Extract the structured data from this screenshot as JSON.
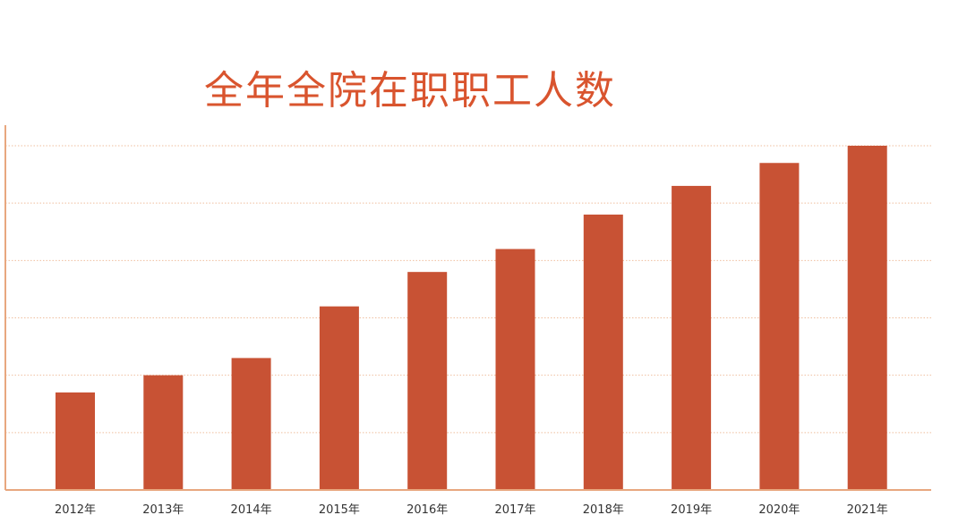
{
  "colors": {
    "bar": "#c85234",
    "title": "#d9542e",
    "axis": "#e8a77f",
    "grid": "#efbf9f"
  },
  "chart_data": {
    "type": "bar",
    "title": "全年全院在职职工人数",
    "xlabel": "",
    "ylabel": "",
    "categories": [
      "2012年",
      "2013年",
      "2014年",
      "2015年",
      "2016年",
      "2017年",
      "2018年",
      "2019年",
      "2020年",
      "2021年"
    ],
    "values": [
      1.7,
      2.0,
      2.3,
      3.2,
      3.8,
      4.2,
      4.8,
      5.3,
      5.7,
      6.0
    ],
    "ylim": [
      0,
      6
    ],
    "y_gridlines": [
      1,
      2,
      3,
      4,
      5,
      6
    ],
    "y_tick_labels_shown": false,
    "grid": true,
    "grid_style": "dotted",
    "legend": "none"
  }
}
